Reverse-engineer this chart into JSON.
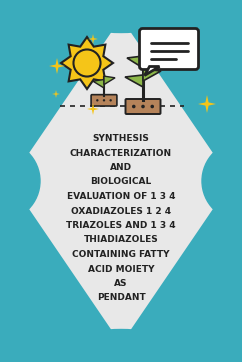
{
  "bg_outer_color": "#3aacbc",
  "bg_inner_color": "#e8e8e8",
  "text_color": "#222222",
  "title_lines": [
    "SYNTHESIS",
    "CHARACTERIZATION",
    "AND",
    "BIOLOGICAL",
    "EVALUATION OF 1 3 4",
    "OXADIAZOLES 1 2 4",
    "TRIAZOLES AND 1 3 4",
    "THIADIAZOLES",
    "CONTAINING FATTY",
    "ACID MOIETY",
    "AS",
    "PENDANT"
  ],
  "star_color": "#f5c518",
  "sun_color": "#f5c518",
  "sun_outline": "#222222",
  "leaf_color": "#8db84a",
  "leaf_outline": "#222222",
  "soil_color": "#b5835a",
  "soil_outline": "#222222",
  "chat_bg": "#ffffff",
  "chat_outline": "#222222",
  "dot_color": "#222222",
  "font_size": 6.5,
  "figsize": [
    2.42,
    3.62
  ],
  "dpi": 100
}
